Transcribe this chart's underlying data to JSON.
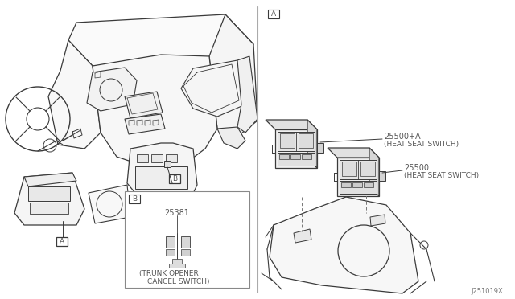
{
  "background_color": "#ffffff",
  "line_color": "#3a3a3a",
  "text_color": "#555555",
  "fig_width": 6.4,
  "fig_height": 3.72,
  "dpi": 100,
  "title_code": "J251019X",
  "part_25381": "25381",
  "part_25500": "25500",
  "part_25500A": "25500+A",
  "desc_trunk_1": "(TRUNK OPENER",
  "desc_trunk_2": "CANCEL SWITCH)",
  "desc_heat": "(HEAT SEAT SWITCH)"
}
